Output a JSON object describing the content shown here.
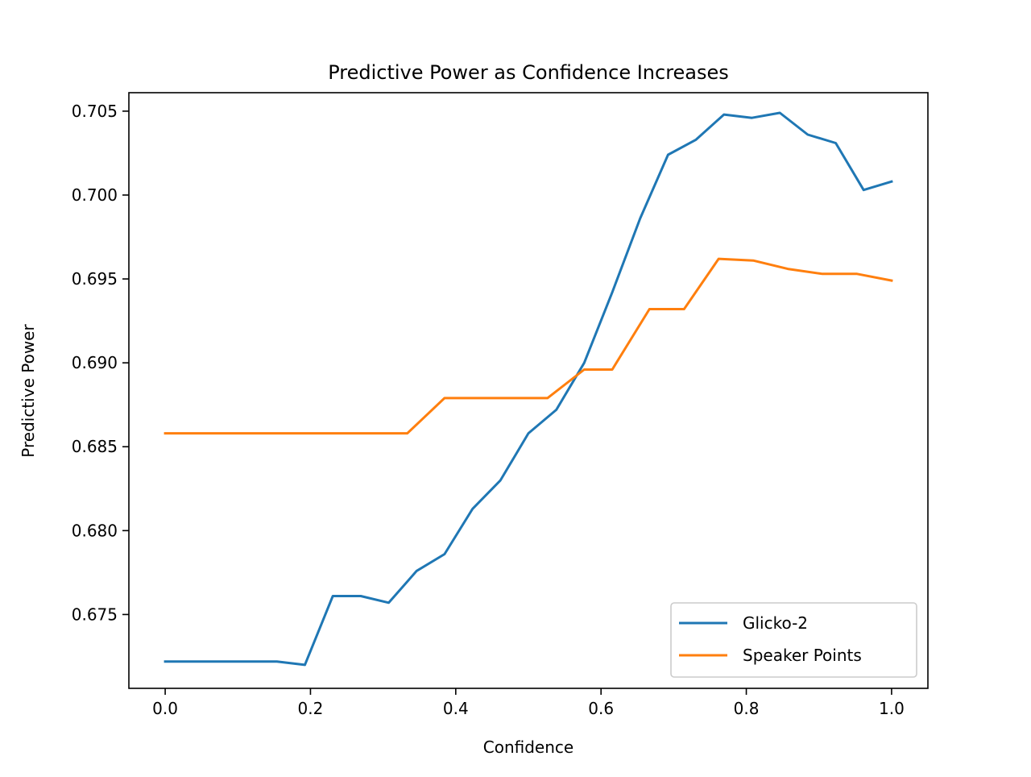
{
  "chart_data": {
    "type": "line",
    "title": "Predictive Power as Confidence Increases",
    "xlabel": "Confidence",
    "ylabel": "Predictive Power",
    "xlim": [
      -0.05,
      1.05
    ],
    "ylim": [
      0.6706,
      0.7061
    ],
    "xticks": [
      0.0,
      0.2,
      0.4,
      0.6,
      0.8,
      1.0
    ],
    "xtick_labels": [
      "0.0",
      "0.2",
      "0.4",
      "0.6",
      "0.8",
      "1.0"
    ],
    "yticks": [
      0.675,
      0.68,
      0.685,
      0.69,
      0.695,
      0.7,
      0.705
    ],
    "ytick_labels": [
      "0.675",
      "0.680",
      "0.685",
      "0.690",
      "0.695",
      "0.700",
      "0.705"
    ],
    "grid": false,
    "legend_position": "lower-right",
    "series": [
      {
        "name": "Glicko-2",
        "color": "#1f77b4",
        "x": [
          0.0,
          0.0385,
          0.0769,
          0.1154,
          0.1538,
          0.1923,
          0.2308,
          0.2692,
          0.3077,
          0.3462,
          0.3846,
          0.4231,
          0.4615,
          0.5,
          0.5385,
          0.5769,
          0.6154,
          0.6538,
          0.6923,
          0.7308,
          0.7692,
          0.8077,
          0.8462,
          0.8846,
          0.9231,
          0.9615,
          1.0
        ],
        "y": [
          0.6722,
          0.6722,
          0.6722,
          0.6722,
          0.6722,
          0.672,
          0.6761,
          0.6761,
          0.6757,
          0.6776,
          0.6786,
          0.6813,
          0.683,
          0.6858,
          0.6872,
          0.69,
          0.6942,
          0.6986,
          0.7024,
          0.7033,
          0.7048,
          0.7046,
          0.7049,
          0.7036,
          0.7031,
          0.7003,
          0.7008
        ]
      },
      {
        "name": "Speaker Points",
        "color": "#ff7f0e",
        "x": [
          0.0,
          0.0385,
          0.0769,
          0.1154,
          0.1538,
          0.1923,
          0.2308,
          0.2692,
          0.3077,
          0.3333,
          0.3846,
          0.4231,
          0.4615,
          0.5,
          0.5263,
          0.5769,
          0.6154,
          0.6667,
          0.7143,
          0.7619,
          0.8095,
          0.8571,
          0.9048,
          0.9524,
          1.0
        ],
        "y": [
          0.6858,
          0.6858,
          0.6858,
          0.6858,
          0.6858,
          0.6858,
          0.6858,
          0.6858,
          0.6858,
          0.6858,
          0.6879,
          0.6879,
          0.6879,
          0.6879,
          0.6879,
          0.6896,
          0.6896,
          0.6932,
          0.6932,
          0.6962,
          0.6961,
          0.6956,
          0.6953,
          0.6953,
          0.6949
        ]
      }
    ]
  }
}
